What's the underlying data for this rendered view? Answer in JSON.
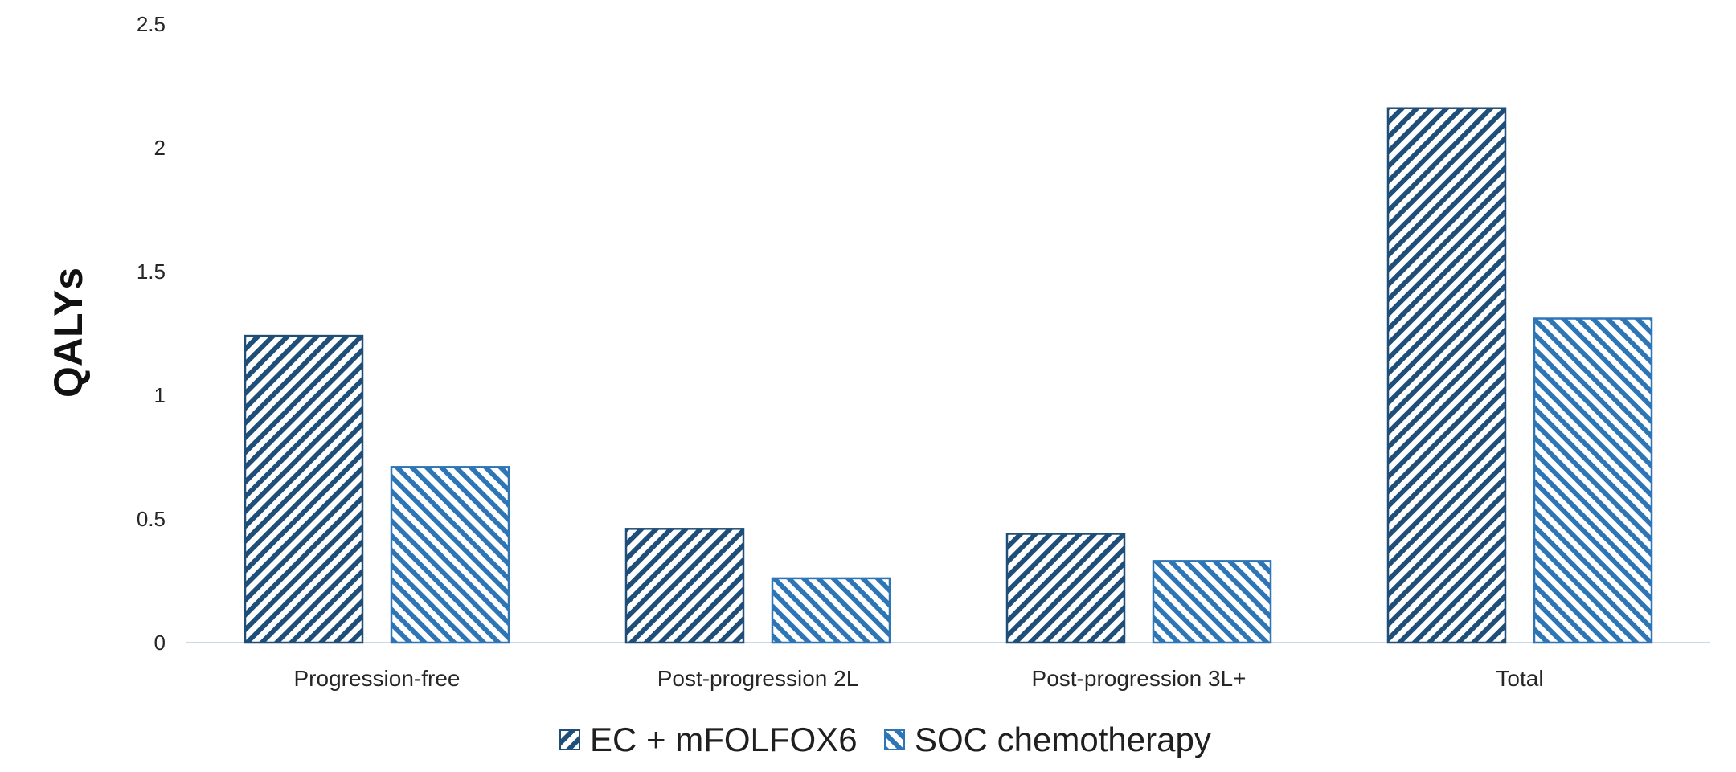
{
  "chart_data": {
    "type": "bar",
    "categories": [
      "Progression-free",
      "Post-progression 2L",
      "Post-progression 3L+",
      "Total"
    ],
    "series": [
      {
        "name": "EC + mFOLFOX6",
        "values": [
          1.24,
          0.46,
          0.44,
          2.16
        ],
        "color": "#1f4e79"
      },
      {
        "name": "SOC chemotherapy",
        "values": [
          0.71,
          0.26,
          0.33,
          1.31
        ],
        "color": "#2e75b6"
      }
    ],
    "ylabel": "QALYs",
    "xlabel": "",
    "ylim": [
      0,
      2.5
    ],
    "yticks": [
      "0",
      "0.5",
      "1",
      "1.5",
      "2",
      "2.5"
    ],
    "grid": false,
    "legend_position": "bottom-center"
  }
}
